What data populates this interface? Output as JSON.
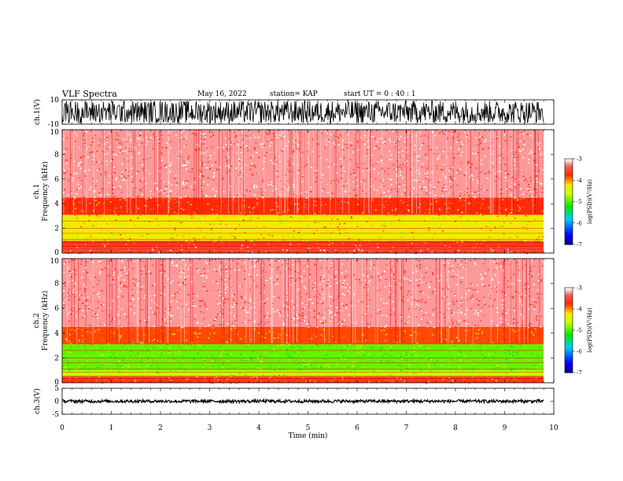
{
  "header": {
    "title": "VLF Spectra",
    "date": "May 16, 2022",
    "station": "station= KAP",
    "start": "start  UT =   0 : 40 : 1"
  },
  "chart_data": [
    {
      "type": "line",
      "panel": "ch1-waveform",
      "ylabel": "ch.1(V)",
      "ylim": [
        -10,
        10
      ],
      "yticks": [
        "10",
        "-10"
      ],
      "xlim": [
        0,
        10
      ],
      "description_values": {
        "amplitude_range_V": [
          -9.5,
          9.5
        ]
      }
    },
    {
      "type": "heatmap",
      "panel": "ch1-spectrogram",
      "ylabel": "ch.1\nFrequency (kHz)",
      "ylim": [
        0,
        10
      ],
      "yticks": [
        "0",
        "2",
        "4",
        "6",
        "8",
        "10"
      ],
      "xlim": [
        0,
        9.8
      ],
      "colorbar": {
        "label": "log(PSD)(V²/Hz)",
        "ticks": [
          "-3",
          "-4",
          "-5",
          "-6",
          "-7"
        ],
        "range": [
          -7,
          -3
        ]
      },
      "bands": [
        {
          "f_low": 0,
          "f_high": 0.4,
          "logpsd": -3.5
        },
        {
          "f_low": 0.4,
          "f_high": 1.0,
          "logpsd": -3.6
        },
        {
          "f_low": 1.0,
          "f_high": 3.1,
          "logpsd": -4.3
        },
        {
          "f_low": 3.1,
          "f_high": 4.5,
          "logpsd": -3.7
        },
        {
          "f_low": 4.5,
          "f_high": 10,
          "logpsd": -3.2
        }
      ]
    },
    {
      "type": "heatmap",
      "panel": "ch2-spectrogram",
      "ylabel": "ch.2\nFrequency (kHz)",
      "ylim": [
        0,
        10
      ],
      "yticks": [
        "0",
        "2",
        "4",
        "6",
        "8",
        "10"
      ],
      "xlim": [
        0,
        9.8
      ],
      "colorbar": {
        "label": "log(PSD)(V²/Hz)",
        "ticks": [
          "-3",
          "-4",
          "-5",
          "-6",
          "-7"
        ],
        "range": [
          -7,
          -3
        ]
      },
      "bands": [
        {
          "f_low": 0,
          "f_high": 0.5,
          "logpsd": -3.6
        },
        {
          "f_low": 0.5,
          "f_high": 1.0,
          "logpsd": -4.6
        },
        {
          "f_low": 1.0,
          "f_high": 3.1,
          "logpsd": -4.9
        },
        {
          "f_low": 3.1,
          "f_high": 4.5,
          "logpsd": -3.8
        },
        {
          "f_low": 4.5,
          "f_high": 10,
          "logpsd": -3.2
        }
      ]
    },
    {
      "type": "line",
      "panel": "ch3-waveform",
      "ylabel": "ch.3(V)",
      "ylim": [
        -5,
        5
      ],
      "yticks": [
        "5",
        "0",
        "-5"
      ],
      "xlim": [
        0,
        10
      ],
      "description_values": {
        "amplitude_range_V": [
          -0.6,
          0.6
        ]
      }
    }
  ],
  "xaxis": {
    "label": "Time (min)",
    "ticks": [
      "0",
      "1",
      "2",
      "3",
      "4",
      "5",
      "6",
      "7",
      "8",
      "9",
      "10"
    ]
  }
}
